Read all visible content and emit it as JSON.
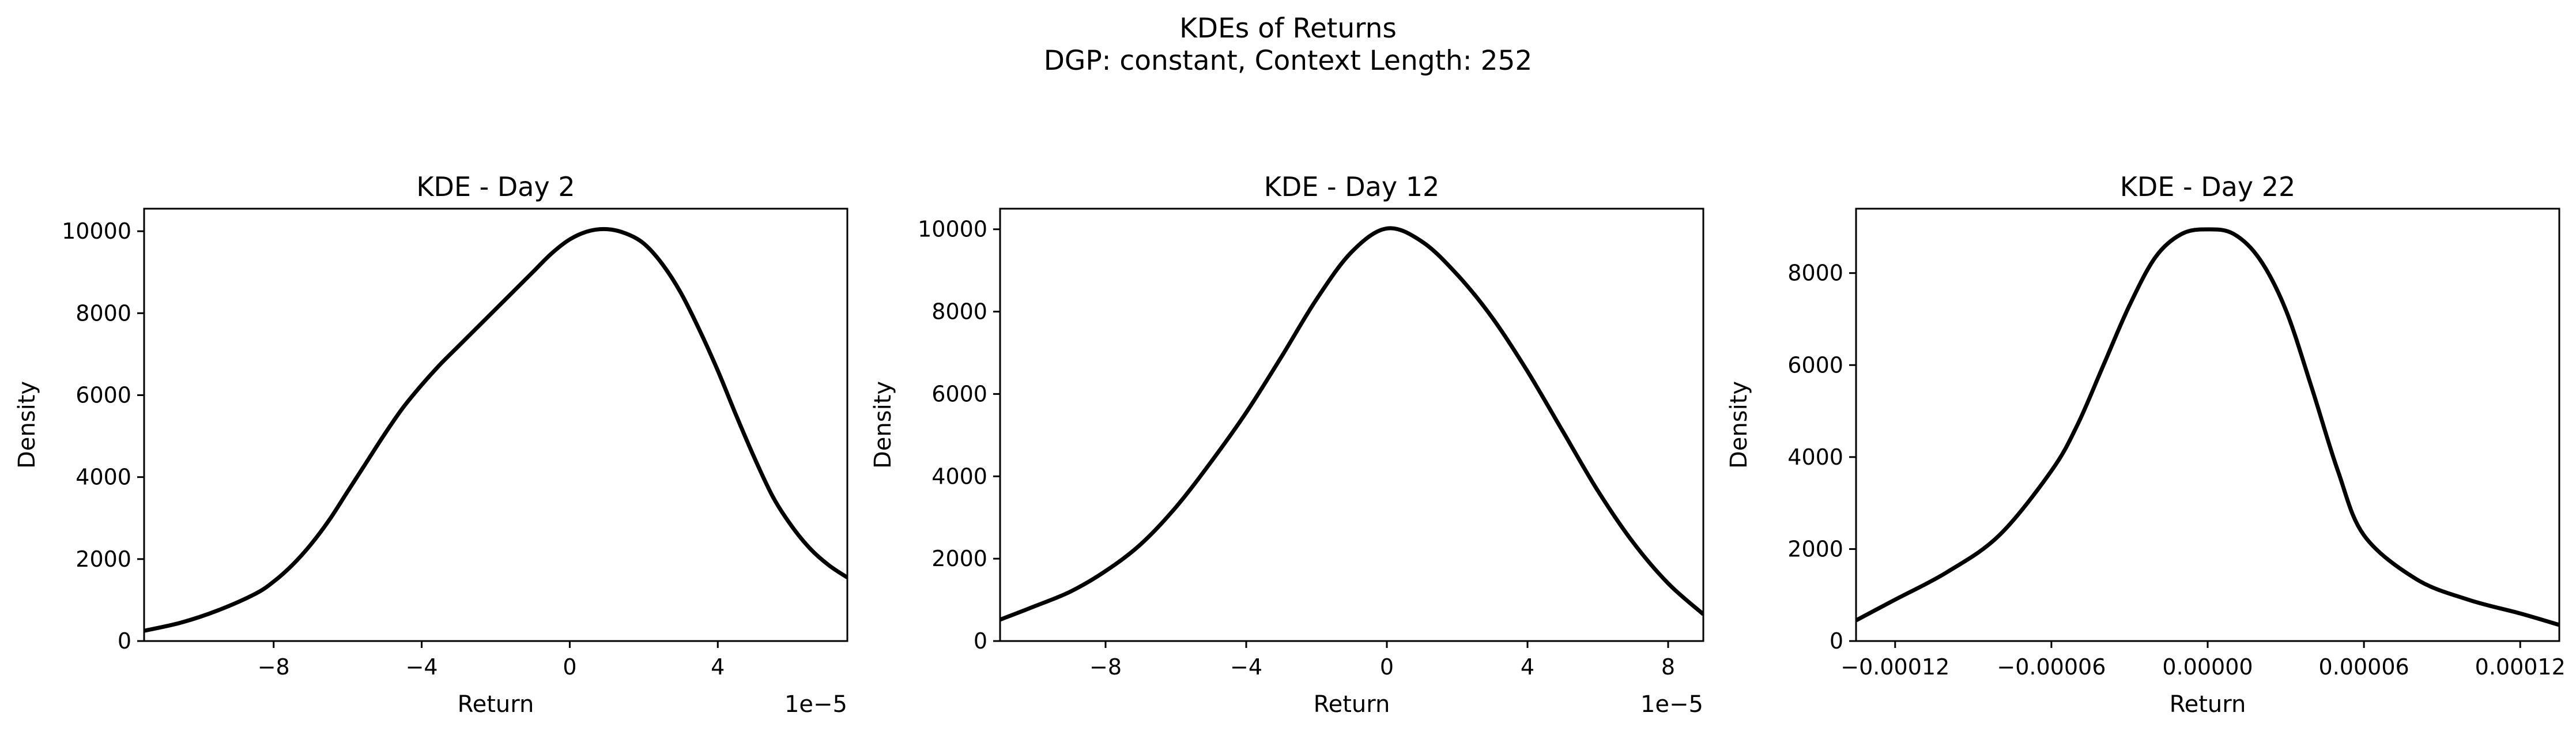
{
  "figure": {
    "title_line1": "KDEs of Returns",
    "title_line2": "DGP: constant, Context Length: 252"
  },
  "chart_data": [
    {
      "type": "line",
      "title": "KDE - Day 2",
      "xlabel": "Return",
      "ylabel": "Density",
      "x_offset_label": "1e−5",
      "xlim": [
        -11.5,
        7.5
      ],
      "ylim": [
        0,
        10550
      ],
      "xticks": [
        -8,
        -4,
        0,
        4
      ],
      "xtick_labels": [
        "−8",
        "−4",
        "0",
        "4"
      ],
      "yticks": [
        0,
        2000,
        4000,
        6000,
        8000,
        10000
      ],
      "ytick_labels": [
        "0",
        "2000",
        "4000",
        "6000",
        "8000",
        "10000"
      ],
      "grid": false,
      "line_color": "#000000",
      "series": [
        {
          "x": [
            -11.5,
            -10.5,
            -9.5,
            -8.5,
            -8,
            -7.5,
            -7,
            -6.5,
            -6,
            -5.5,
            -5,
            -4.5,
            -4,
            -3.5,
            -3,
            -2.5,
            -2,
            -1.5,
            -1,
            -0.5,
            0,
            0.5,
            1,
            1.5,
            2,
            2.5,
            3,
            3.5,
            4,
            4.5,
            5,
            5.5,
            6,
            6.5,
            7,
            7.5
          ],
          "y": [
            250,
            450,
            750,
            1150,
            1450,
            1850,
            2350,
            2950,
            3650,
            4350,
            5050,
            5700,
            6250,
            6750,
            7200,
            7650,
            8100,
            8550,
            9000,
            9450,
            9800,
            10000,
            10050,
            9950,
            9700,
            9200,
            8500,
            7600,
            6600,
            5500,
            4450,
            3500,
            2800,
            2250,
            1850,
            1550
          ]
        }
      ]
    },
    {
      "type": "line",
      "title": "KDE - Day 12",
      "xlabel": "Return",
      "ylabel": "Density",
      "x_offset_label": "1e−5",
      "xlim": [
        -11,
        9
      ],
      "ylim": [
        0,
        10500
      ],
      "xticks": [
        -8,
        -4,
        0,
        4,
        8
      ],
      "xtick_labels": [
        "−8",
        "−4",
        "0",
        "4",
        "8"
      ],
      "yticks": [
        0,
        2000,
        4000,
        6000,
        8000,
        10000
      ],
      "ytick_labels": [
        "0",
        "2000",
        "4000",
        "6000",
        "8000",
        "10000"
      ],
      "grid": false,
      "line_color": "#000000",
      "series": [
        {
          "x": [
            -11,
            -10,
            -9,
            -8,
            -7,
            -6,
            -5,
            -4,
            -3,
            -2,
            -1,
            0,
            1,
            2,
            3,
            4,
            5,
            6,
            7,
            8,
            9
          ],
          "y": [
            520,
            850,
            1200,
            1700,
            2350,
            3250,
            4350,
            5550,
            6900,
            8300,
            9450,
            10020,
            9700,
            8900,
            7850,
            6550,
            5100,
            3650,
            2400,
            1400,
            650
          ]
        }
      ]
    },
    {
      "type": "line",
      "title": "KDE - Day 22",
      "xlabel": "Return",
      "ylabel": "Density",
      "xlim": [
        -0.000135,
        0.000135
      ],
      "ylim": [
        0,
        9400
      ],
      "xticks": [
        -0.00012,
        -6e-05,
        0,
        6e-05,
        0.00012
      ],
      "xtick_labels": [
        "−0.00012",
        "−0.00006",
        "0.00000",
        "0.00006",
        "0.00012"
      ],
      "yticks": [
        0,
        2000,
        4000,
        6000,
        8000
      ],
      "ytick_labels": [
        "0",
        "2000",
        "4000",
        "6000",
        "8000"
      ],
      "grid": false,
      "line_color": "#000000",
      "series": [
        {
          "x": [
            -0.000135,
            -0.00012,
            -0.0001,
            -8e-05,
            -6e-05,
            -5e-05,
            -4e-05,
            -3e-05,
            -2e-05,
            -1e-05,
            0,
            1e-05,
            2e-05,
            3e-05,
            4e-05,
            5e-05,
            6e-05,
            8e-05,
            0.0001,
            0.00012,
            0.000135
          ],
          "y": [
            450,
            900,
            1500,
            2300,
            3700,
            4700,
            6000,
            7300,
            8350,
            8850,
            8950,
            8850,
            8300,
            7200,
            5500,
            3700,
            2300,
            1350,
            900,
            600,
            350
          ]
        }
      ]
    }
  ]
}
